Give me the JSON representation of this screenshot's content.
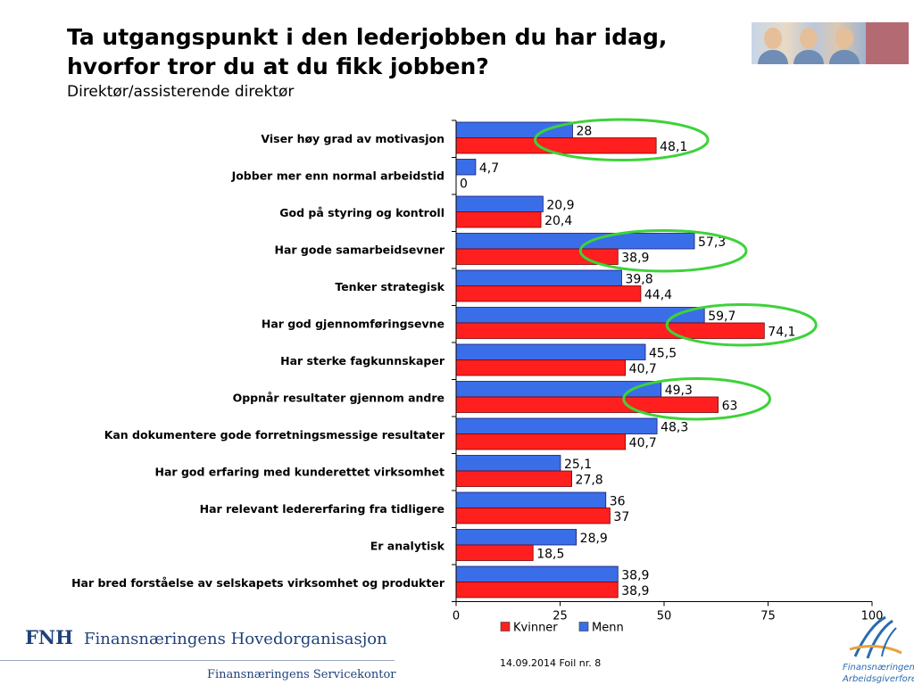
{
  "slide": {
    "title": "Ta utgangspunkt i den lederjobben du har idag, hvorfor tror du at du fikk jobben?",
    "subtitle": "Direktør/assisterende direktør",
    "footer": "14.09.2014 Foil nr. 8"
  },
  "logos": {
    "fnh_mark": "FNH",
    "fnh_name": "Finansnæringens Hovedorganisasjon",
    "service": "Finansnæringens Servicekontor",
    "fa_name_1": "Finansnæringens",
    "fa_name_2": "Arbeidsgiverforening"
  },
  "colors": {
    "menn": "#3a6ee8",
    "kvinner": "#ff1f1f",
    "highlight": "#3ed23a",
    "title": "#000000",
    "logo_blue": "#20427a"
  },
  "chart_data": {
    "type": "bar",
    "orientation": "horizontal",
    "title": "",
    "xlabel": "",
    "ylabel": "",
    "xlim": [
      0,
      100
    ],
    "xticks": [
      0,
      25,
      50,
      75,
      100
    ],
    "categories": [
      "Viser høy grad av motivasjon",
      "Jobber mer enn normal arbeidstid",
      "God på styring og kontroll",
      "Har gode samarbeidsevner",
      "Tenker strategisk",
      "Har god gjennomføringsevne",
      "Har sterke fagkunnskaper",
      "Oppnår resultater gjennom andre",
      "Kan dokumentere gode forretningsmessige resultater",
      "Har god erfaring med kunderettet virksomhet",
      "Har relevant ledererfaring fra tidligere",
      "Er analytisk",
      "Har bred forståelse av selskapets virksomhet og produkter"
    ],
    "series": [
      {
        "name": "Menn",
        "color": "#3a6ee8",
        "values": [
          28,
          4.7,
          20.9,
          57.3,
          39.8,
          59.7,
          45.5,
          49.3,
          48.3,
          25.1,
          36,
          28.9,
          38.9
        ],
        "labels": [
          "28",
          "4,7",
          "20,9",
          "57,3",
          "39,8",
          "59,7",
          "45,5",
          "49,3",
          "48,3",
          "25,1",
          "36",
          "28,9",
          "38,9"
        ]
      },
      {
        "name": "Kvinner",
        "color": "#ff1f1f",
        "values": [
          48.1,
          0,
          20.4,
          38.9,
          44.4,
          74.1,
          40.7,
          63,
          40.7,
          27.8,
          37,
          18.5,
          38.9
        ],
        "labels": [
          "48,1",
          "0",
          "20,4",
          "38,9",
          "44,4",
          "74,1",
          "40,7",
          "63",
          "40,7",
          "27,8",
          "37",
          "18,5",
          "38,9"
        ]
      }
    ],
    "legend": {
      "position": "bottom",
      "order": [
        "Kvinner",
        "Menn"
      ]
    },
    "highlighted_categories": [
      "Viser høy grad av motivasjon",
      "Har gode samarbeidsevner",
      "Har god gjennomføringsevne",
      "Oppnår resultater gjennom andre"
    ],
    "grid": false
  }
}
